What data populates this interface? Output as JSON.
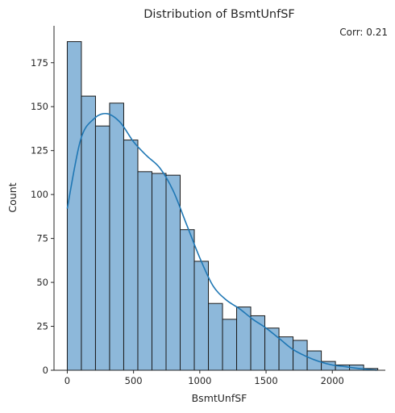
{
  "chart_data": {
    "type": "bar",
    "title": "Distribution of BsmtUnfSF",
    "xlabel": "BsmtUnfSF",
    "ylabel": "Count",
    "annotation": "Corr: 0.21",
    "bin_width": 106.5,
    "bin_start": 0,
    "counts": [
      187,
      156,
      139,
      152,
      131,
      113,
      112,
      111,
      80,
      62,
      38,
      29,
      36,
      31,
      24,
      19,
      17,
      11,
      5,
      3,
      3,
      1
    ],
    "xlim": [
      -100,
      2400
    ],
    "ylim": [
      0,
      196
    ],
    "xticks": [
      0,
      500,
      1000,
      1500,
      2000
    ],
    "xtick_labels": [
      "0",
      "500",
      "1000",
      "1500",
      "2000"
    ],
    "yticks": [
      0,
      25,
      50,
      75,
      100,
      125,
      150,
      175
    ],
    "ytick_labels": [
      "0",
      "25",
      "50",
      "75",
      "100",
      "125",
      "150",
      "175"
    ],
    "kde": {
      "x": [
        0,
        100,
        200,
        300,
        400,
        500,
        600,
        700,
        800,
        900,
        1000,
        1100,
        1200,
        1300,
        1400,
        1500,
        1600,
        1700,
        1800,
        1900,
        2000,
        2100,
        2200,
        2336
      ],
      "y": [
        92,
        131,
        143,
        146,
        141,
        130,
        122,
        115,
        102,
        83,
        64,
        48,
        40,
        35,
        29,
        24,
        18,
        12,
        8,
        5,
        3,
        2,
        1,
        0
      ]
    },
    "bar_fill": "#8db8da",
    "bar_edge": "#1a1a1a",
    "kde_color": "#1f77b4",
    "grid": false,
    "legend": "none"
  }
}
